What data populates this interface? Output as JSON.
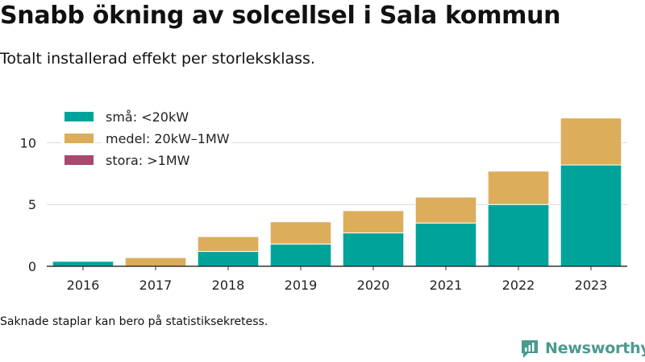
{
  "header": {
    "title": "Snabb ökning av solcellsel i Sala kommun",
    "subtitle": "Totalt installerad effekt per storleksklass."
  },
  "footer": {
    "note": "Saknade staplar kan bero på statistiksekretess.",
    "brand": "Newsworthy"
  },
  "colors": {
    "sma": "#00a39a",
    "medel": "#dcad5a",
    "stora": "#a8476f",
    "grid": "#d9d9d9",
    "axis": "#333333",
    "brand": "#4a9a8f"
  },
  "chart_data": {
    "type": "bar",
    "stacked": true,
    "categories": [
      "2016",
      "2017",
      "2018",
      "2019",
      "2020",
      "2021",
      "2022",
      "2023"
    ],
    "series": [
      {
        "name": "små: <20kW",
        "color": "#00a39a",
        "values": [
          0.4,
          0,
          1.2,
          1.8,
          2.7,
          3.5,
          5.0,
          8.2
        ]
      },
      {
        "name": "medel: 20kW–1MW",
        "color": "#dcad5a",
        "values": [
          0,
          0.7,
          1.2,
          1.8,
          1.8,
          2.1,
          2.7,
          3.8
        ]
      },
      {
        "name": "stora: >1MW",
        "color": "#a8476f",
        "values": [
          0,
          0,
          0,
          0,
          0,
          0,
          0,
          0
        ]
      }
    ],
    "y_ticks": [
      "0",
      "5",
      "10"
    ],
    "ylim": [
      0,
      12.5
    ],
    "grid": true,
    "legend_position": "top-left"
  }
}
